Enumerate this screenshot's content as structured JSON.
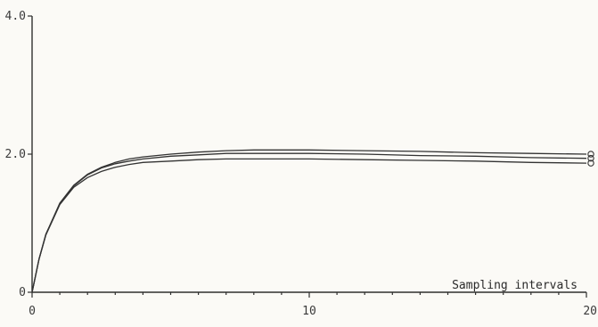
{
  "chart_data": {
    "type": "line",
    "title": "",
    "xlabel": "Sampling intervals",
    "ylabel": "",
    "xlim": [
      0,
      20
    ],
    "ylim": [
      0,
      4.0
    ],
    "x_ticks": [
      0,
      10,
      20
    ],
    "x_tick_labels": [
      "0",
      "10",
      "20"
    ],
    "y_ticks": [
      0,
      2.0,
      4.0
    ],
    "y_tick_labels": [
      "0",
      "2.0",
      "4.0"
    ],
    "grid": false,
    "legend": "none",
    "line_color": "#333333",
    "x": [
      0,
      0.25,
      0.5,
      1,
      1.5,
      2,
      2.5,
      3,
      3.5,
      4,
      5,
      6,
      7,
      8,
      9,
      10,
      12,
      14,
      16,
      18,
      20
    ],
    "series": [
      {
        "marker": "1",
        "values": [
          0,
          0.48,
          0.84,
          1.29,
          1.55,
          1.71,
          1.81,
          1.88,
          1.93,
          1.96,
          2.0,
          2.03,
          2.05,
          2.06,
          2.06,
          2.06,
          2.05,
          2.04,
          2.02,
          2.01,
          2.0
        ]
      },
      {
        "marker": "2",
        "values": [
          0,
          0.48,
          0.84,
          1.28,
          1.54,
          1.7,
          1.8,
          1.86,
          1.9,
          1.93,
          1.97,
          1.99,
          2.01,
          2.01,
          2.01,
          2.01,
          2.0,
          1.98,
          1.97,
          1.95,
          1.94
        ]
      },
      {
        "marker": "3",
        "values": [
          0,
          0.48,
          0.83,
          1.27,
          1.52,
          1.66,
          1.75,
          1.81,
          1.85,
          1.88,
          1.9,
          1.92,
          1.93,
          1.93,
          1.93,
          1.93,
          1.92,
          1.91,
          1.9,
          1.88,
          1.87
        ]
      }
    ]
  }
}
